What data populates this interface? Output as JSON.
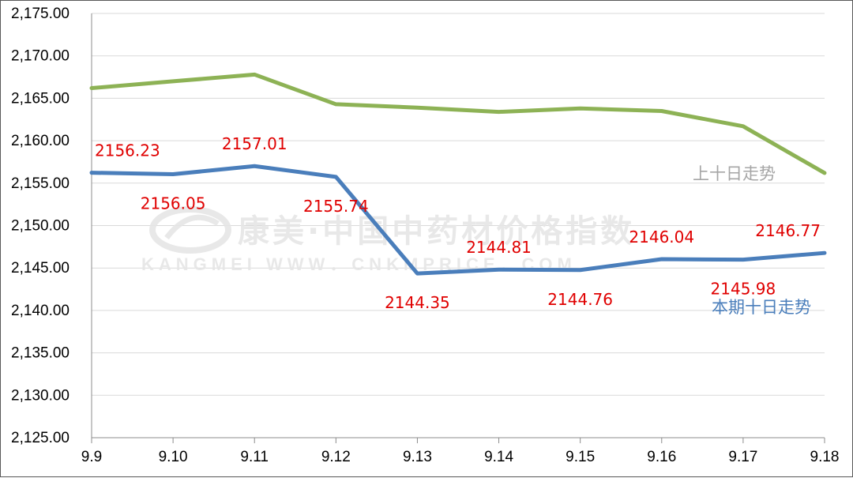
{
  "watermark": {
    "title": "康美·中国中药材价格指数",
    "subtitle": "KANGMEI WWW．CNKMPRICE．COM"
  },
  "chart_data": {
    "type": "line",
    "categories": [
      "9.9",
      "9.10",
      "9.11",
      "9.12",
      "9.13",
      "9.14",
      "9.15",
      "9.16",
      "9.17",
      "9.18"
    ],
    "ylim": [
      2125,
      2175
    ],
    "ystep": 5,
    "y_tick_labels": [
      "2,125.00",
      "2,130.00",
      "2,135.00",
      "2,140.00",
      "2,145.00",
      "2,150.00",
      "2,155.00",
      "2,160.00",
      "2,165.00",
      "2,170.00",
      "2,175.00"
    ],
    "grid": true,
    "legend": "inline labels at right end of each line",
    "series": [
      {
        "name": "上十日走势",
        "color": "#8db255",
        "values": [
          2166.2,
          2167.0,
          2167.8,
          2164.3,
          2163.9,
          2163.4,
          2163.8,
          2163.5,
          2161.7,
          2156.2
        ],
        "data_labels": []
      },
      {
        "name": "本期十日走势",
        "color": "#4a7ebb",
        "values": [
          2156.23,
          2156.05,
          2157.01,
          2155.74,
          2144.35,
          2144.81,
          2144.76,
          2146.04,
          2145.98,
          2146.77
        ],
        "data_labels": [
          "2156.23",
          "2156.05",
          "2157.01",
          "2155.74",
          "2144.35",
          "2144.81",
          "2144.76",
          "2146.04",
          "2145.98",
          "2146.77"
        ]
      }
    ],
    "label_colors": {
      "data_label": "#e00000",
      "previous_series_label": "#a6a6a6",
      "current_series_label": "#4a7ebb"
    }
  }
}
